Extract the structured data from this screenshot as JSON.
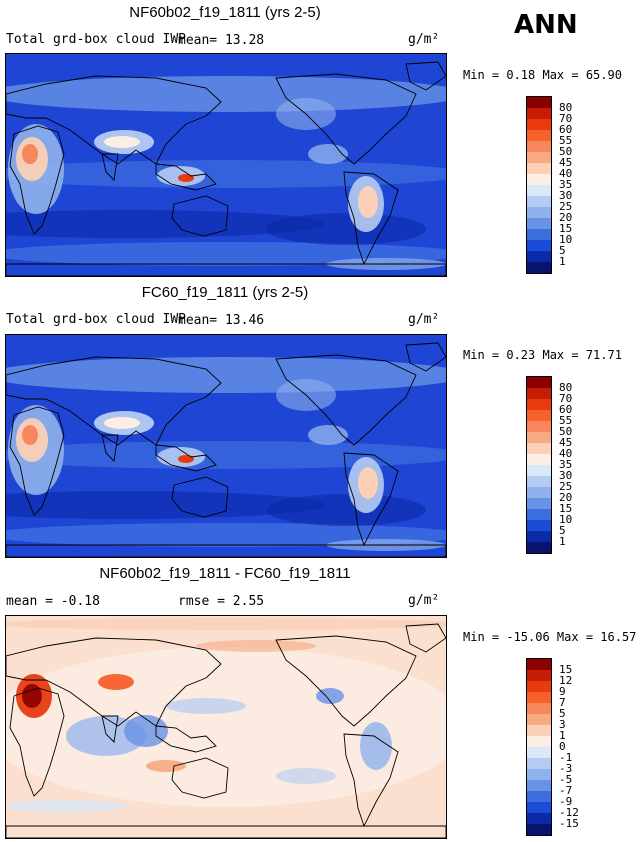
{
  "season": "ANN",
  "panels": [
    {
      "title": "NF60b02_f19_1811 (yrs 2-5)",
      "variable": "Total grd-box cloud IWP",
      "stat1": "mean=  13.28",
      "stat2": "",
      "units": "g/m²",
      "minmax": "Min =   0.18 Max =  65.90",
      "levels": [
        "80",
        "70",
        "60",
        "55",
        "50",
        "45",
        "40",
        "35",
        "30",
        "25",
        "20",
        "15",
        "10",
        "5",
        "1"
      ],
      "colors": [
        "#8b0000",
        "#c71d04",
        "#e83a0e",
        "#f5602b",
        "#f7865c",
        "#f7a981",
        "#fbd0b6",
        "#fdeee3",
        "#dbe8f8",
        "#b5ccf2",
        "#8fb1ec",
        "#6892e6",
        "#3d6ee0",
        "#1a4cd8",
        "#0a2aa8",
        "#06146e"
      ],
      "background_color": "#1f45d4",
      "land_color": "#4a7ce6"
    },
    {
      "title": "FC60_f19_1811 (yrs 2-5)",
      "variable": "Total grd-box cloud IWP",
      "stat1": "mean=  13.46",
      "stat2": "",
      "units": "g/m²",
      "minmax": "Min =   0.23 Max =  71.71",
      "levels": [
        "80",
        "70",
        "60",
        "55",
        "50",
        "45",
        "40",
        "35",
        "30",
        "25",
        "20",
        "15",
        "10",
        "5",
        "1"
      ],
      "colors": [
        "#8b0000",
        "#c71d04",
        "#e83a0e",
        "#f5602b",
        "#f7865c",
        "#f7a981",
        "#fbd0b6",
        "#fdeee3",
        "#dbe8f8",
        "#b5ccf2",
        "#8fb1ec",
        "#6892e6",
        "#3d6ee0",
        "#1a4cd8",
        "#0a2aa8",
        "#06146e"
      ],
      "background_color": "#1f45d4",
      "land_color": "#4a7ce6"
    },
    {
      "title": "NF60b02_f19_1811 - FC60_f19_1811",
      "variable": "mean =  -0.18",
      "stat1": "",
      "stat2": "rmse =   2.55",
      "units": "g/m²",
      "minmax": "Min = -15.06 Max =  16.57",
      "levels": [
        "15",
        "12",
        "9",
        "7",
        "5",
        "3",
        "1",
        "0",
        "-1",
        "-3",
        "-5",
        "-7",
        "-9",
        "-12",
        "-15"
      ],
      "colors": [
        "#8b0000",
        "#c71d04",
        "#e83a0e",
        "#f5602b",
        "#f7865c",
        "#f7a981",
        "#fbd0b6",
        "#fdeee3",
        "#dbe8f8",
        "#b5ccf2",
        "#8fb1ec",
        "#6892e6",
        "#3d6ee0",
        "#1a4cd8",
        "#0a2aa8",
        "#06146e"
      ],
      "background_color": "#fbe0d0",
      "land_color": "#fdeee3"
    }
  ]
}
